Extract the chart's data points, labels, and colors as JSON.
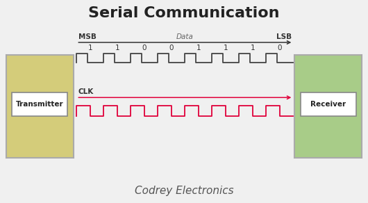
{
  "title": "Serial Communication",
  "subtitle": "Codrey Electronics",
  "title_fontsize": 16,
  "subtitle_fontsize": 11,
  "bg_color": "#f0f0f0",
  "transmitter_box_color": "#d4cc7a",
  "receiver_box_color": "#a8cc88",
  "transmitter_label": "Transmitter",
  "receiver_label": "Receiver",
  "msb_label": "MSB",
  "lsb_label": "LSB",
  "data_label": "Data",
  "clk_label": "CLK",
  "bits": [
    "1",
    "1",
    "0",
    "0",
    "1",
    "1",
    "1",
    "0"
  ],
  "data_signal_color": "#444444",
  "clk_signal_color": "#e0003a",
  "arrow_color": "#333333",
  "clk_arrow_color": "#e0003a",
  "box_edge_color": "#aaaaaa",
  "inner_box_edge_color": "#888888"
}
